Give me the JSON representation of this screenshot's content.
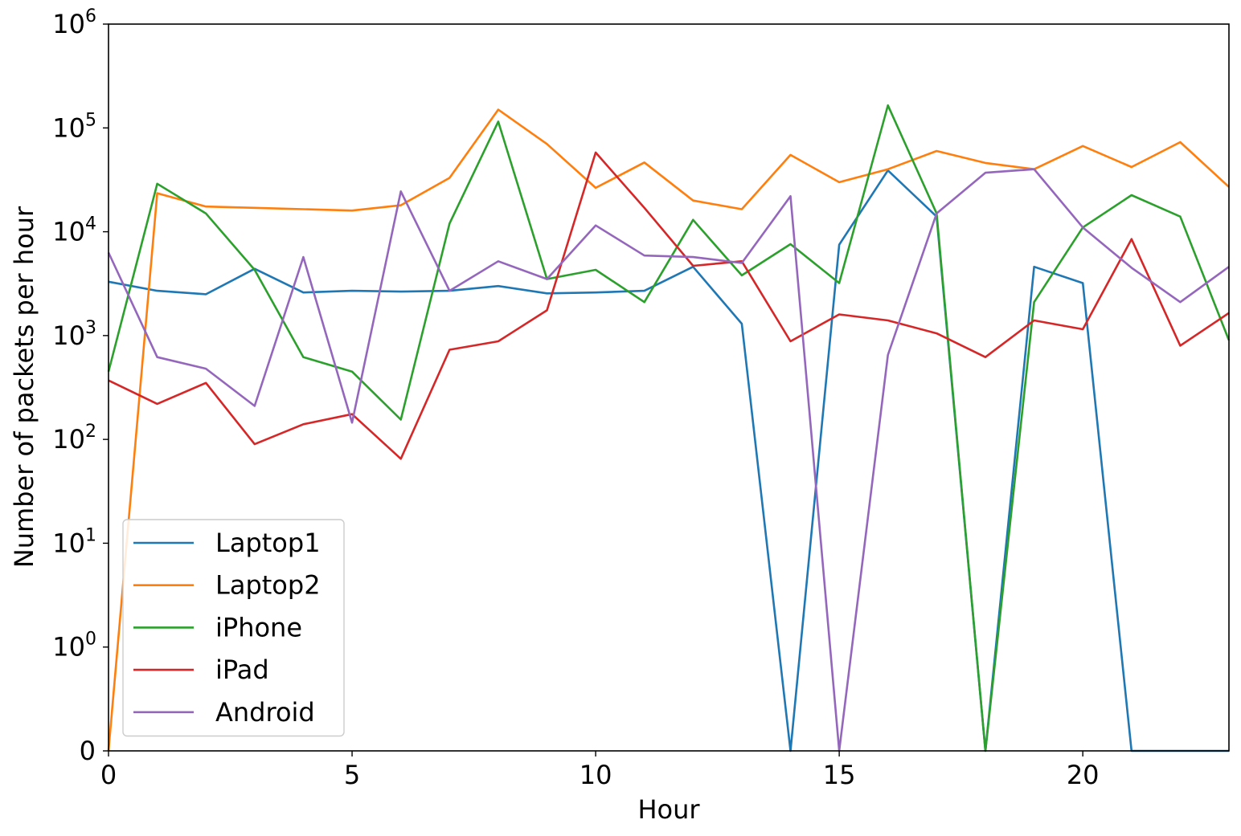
{
  "chart_data": {
    "type": "line",
    "xlabel": "Hour",
    "ylabel": "Number of packets per hour",
    "xlim": [
      0,
      23
    ],
    "yscale": "symlog",
    "ylim": [
      0,
      1000000
    ],
    "x_ticks": [
      0,
      5,
      10,
      15,
      20
    ],
    "y_ticks": [
      {
        "value": 0,
        "base": "0",
        "exp": ""
      },
      {
        "value": 1,
        "base": "10",
        "exp": "0"
      },
      {
        "value": 10,
        "base": "10",
        "exp": "1"
      },
      {
        "value": 100,
        "base": "10",
        "exp": "2"
      },
      {
        "value": 1000,
        "base": "10",
        "exp": "3"
      },
      {
        "value": 10000,
        "base": "10",
        "exp": "4"
      },
      {
        "value": 100000,
        "base": "10",
        "exp": "5"
      },
      {
        "value": 1000000,
        "base": "10",
        "exp": "6"
      }
    ],
    "legend_position": "lower-left",
    "x": [
      0,
      1,
      2,
      3,
      4,
      5,
      6,
      7,
      8,
      9,
      10,
      11,
      12,
      13,
      14,
      15,
      16,
      17,
      18,
      19,
      20,
      21,
      22,
      23
    ],
    "series": [
      {
        "name": "Laptop1",
        "color": "#1f77b4",
        "values": [
          3300,
          2700,
          2500,
          4400,
          2600,
          2700,
          2650,
          2700,
          3000,
          2550,
          2600,
          2700,
          4600,
          1300,
          0,
          7500,
          39000,
          14000,
          0,
          4600,
          3200,
          0,
          0,
          0
        ]
      },
      {
        "name": "Laptop2",
        "color": "#ff7f0e",
        "values": [
          0,
          23500,
          17500,
          17000,
          16500,
          16000,
          18000,
          33000,
          150000,
          70000,
          26500,
          46500,
          20000,
          16500,
          55000,
          30000,
          40000,
          60000,
          46000,
          40000,
          67000,
          42000,
          73000,
          27000
        ]
      },
      {
        "name": "iPhone",
        "color": "#2ca02c",
        "values": [
          450,
          29000,
          15000,
          4300,
          620,
          450,
          155,
          12000,
          115000,
          3500,
          4300,
          2100,
          13000,
          3800,
          7600,
          3200,
          165000,
          15000,
          0,
          2100,
          11000,
          22500,
          14000,
          900
        ]
      },
      {
        "name": "iPad",
        "color": "#d62728",
        "values": [
          370,
          220,
          350,
          90,
          140,
          175,
          65,
          730,
          880,
          1750,
          58000,
          17000,
          4700,
          5200,
          880,
          1600,
          1400,
          1050,
          620,
          1400,
          1150,
          8500,
          800,
          1650
        ]
      },
      {
        "name": "Android",
        "color": "#9467bd",
        "values": [
          6300,
          620,
          480,
          210,
          5700,
          145,
          24500,
          2700,
          5200,
          3500,
          11500,
          5900,
          5700,
          5000,
          22000,
          0,
          650,
          15000,
          37000,
          40000,
          11000,
          4500,
          2100,
          4600
        ]
      }
    ]
  }
}
